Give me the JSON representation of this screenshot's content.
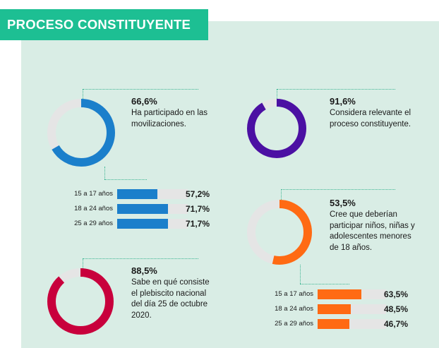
{
  "banner": {
    "title": "PROCESO CONSTITUYENTE",
    "color": "#1dbf93"
  },
  "colors": {
    "panel": "#d9ede5",
    "track": "#e5e5e5",
    "guide": "#3cb592"
  },
  "chart_data": [
    {
      "type": "pie",
      "id": "movilizaciones",
      "value_percent": 66.6,
      "value_label": "66,6%",
      "description": "Ha participado en las movilizaciones.",
      "color": "#1b7fcb",
      "bars": {
        "type": "bar",
        "categories": [
          "15 a 17 años",
          "18 a 24 años",
          "25 a 29 años"
        ],
        "values": [
          57.2,
          71.7,
          71.7
        ],
        "value_labels": [
          "57,2%",
          "71,7%",
          "71,7%"
        ]
      }
    },
    {
      "type": "pie",
      "id": "relevante",
      "value_percent": 91.6,
      "value_label": "91,6%",
      "description": "Considera relevante el proceso constituyente.",
      "color": "#4b10a3"
    },
    {
      "type": "pie",
      "id": "ninos",
      "value_percent": 53.5,
      "value_label": "53,5%",
      "description": "Cree que deberían participar niños, niñas y adolescentes menores de 18 años.",
      "color": "#ff6a13",
      "bars": {
        "type": "bar",
        "categories": [
          "15 a 17 años",
          "18 a 24 años",
          "25 a 29 años"
        ],
        "values": [
          63.5,
          48.5,
          46.7
        ],
        "value_labels": [
          "63,5%",
          "48,5%",
          "46,7%"
        ]
      }
    },
    {
      "type": "pie",
      "id": "plebiscito",
      "value_percent": 88.5,
      "value_label": "88,5%",
      "description": "Sabe en qué consiste el plebiscito nacional del día 25 de octubre 2020.",
      "color": "#c8003c"
    }
  ]
}
